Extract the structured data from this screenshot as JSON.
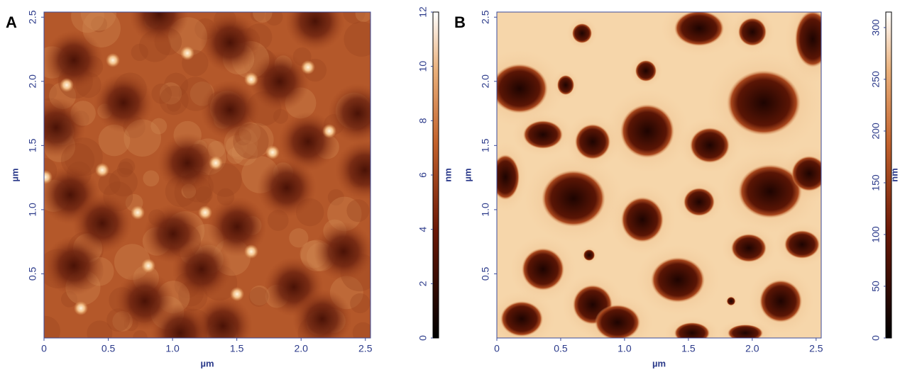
{
  "chart_data": [
    {
      "type": "heatmap",
      "panel": "A",
      "xlabel": "µm",
      "ylabel": "µm",
      "xlim": [
        0,
        2.54
      ],
      "ylim": [
        0,
        2.54
      ],
      "xticks": [
        0,
        0.5,
        {
          "value": 1,
          "label": "1.0"
        },
        1.5,
        {
          "value": 2,
          "label": "2.0"
        },
        2.5
      ],
      "yticks": [
        0.5,
        {
          "value": 1,
          "label": "1.0"
        },
        1.5,
        {
          "value": 2,
          "label": "2.0"
        },
        2.5
      ],
      "colorbar": {
        "label": "nm",
        "lim": [
          0,
          12
        ],
        "ticks": [
          0,
          2,
          4,
          6,
          8,
          10,
          12
        ]
      }
    },
    {
      "type": "heatmap",
      "panel": "B",
      "xlabel": "µm",
      "ylabel": "µm",
      "xlim": [
        0,
        2.54
      ],
      "ylim": [
        0,
        2.54
      ],
      "xticks": [
        0,
        0.5,
        {
          "value": 1,
          "label": "1.0"
        },
        1.5,
        {
          "value": 2,
          "label": "2.0"
        },
        2.5
      ],
      "yticks": [
        0.5,
        {
          "value": 1,
          "label": "1.0"
        },
        1.5,
        {
          "value": 2,
          "label": "2.0"
        },
        2.5
      ],
      "colorbar": {
        "label": "nm",
        "lim": [
          0,
          315
        ],
        "ticks": [
          0,
          50,
          100,
          150,
          200,
          250,
          300
        ]
      }
    }
  ]
}
